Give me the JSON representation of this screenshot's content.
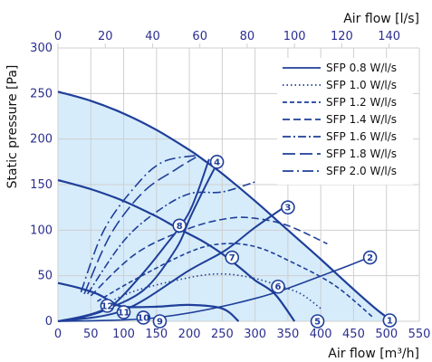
{
  "chart_data": {
    "type": "line",
    "x_axis_bottom": {
      "label": "Air flow [m³/h]",
      "range": [
        0,
        550
      ],
      "ticks": [
        "0",
        "50",
        "100",
        "150",
        "200",
        "250",
        "300",
        "350",
        "400",
        "450",
        "500",
        "550"
      ]
    },
    "x_axis_top": {
      "label": "Air flow [l/s]",
      "range": [
        0,
        152.78
      ],
      "ticks": [
        "0",
        "20",
        "40",
        "60",
        "80",
        "100",
        "120",
        "140"
      ]
    },
    "y_axis": {
      "label": "Static pressure [Pa]",
      "range": [
        0,
        300
      ],
      "ticks": [
        "0",
        "50",
        "100",
        "150",
        "200",
        "250",
        "300"
      ]
    },
    "grid": true,
    "legend_position": "top-right",
    "colors": {
      "line": "#1f3f99",
      "fill": "#d6ecfb",
      "axis_text": "#2b2f8f",
      "grid": "#cfcfcf"
    },
    "fan_curves": [
      {
        "points": [
          [
            0,
            252
          ],
          [
            50,
            242
          ],
          [
            100,
            228
          ],
          [
            150,
            210
          ],
          [
            200,
            188
          ],
          [
            220,
            178
          ],
          [
            250,
            162
          ],
          [
            300,
            132
          ],
          [
            350,
            100
          ],
          [
            400,
            68
          ],
          [
            450,
            35
          ],
          [
            490,
            10
          ],
          [
            510,
            0
          ]
        ]
      },
      {
        "points": [
          [
            0,
            155
          ],
          [
            50,
            145
          ],
          [
            100,
            132
          ],
          [
            150,
            115
          ],
          [
            180,
            103
          ],
          [
            220,
            88
          ],
          [
            250,
            74
          ],
          [
            280,
            57
          ],
          [
            300,
            45
          ],
          [
            330,
            30
          ],
          [
            360,
            0
          ]
        ]
      },
      {
        "points": [
          [
            0,
            42
          ],
          [
            30,
            37
          ],
          [
            60,
            30
          ],
          [
            80,
            22
          ],
          [
            100,
            16
          ],
          [
            150,
            16
          ],
          [
            200,
            18
          ],
          [
            250,
            14
          ],
          [
            275,
            0
          ]
        ]
      }
    ],
    "system_curves": [
      {
        "name": "SFP 0.8 W/l/s",
        "style": "solid",
        "points": [
          [
            0,
            0
          ],
          [
            150,
            4
          ],
          [
            300,
            25
          ],
          [
            420,
            55
          ],
          [
            480,
            72
          ]
        ]
      },
      {
        "name": "SFP 1.0 W/l/s",
        "style": "dotted",
        "points": [
          [
            75,
            20
          ],
          [
            120,
            34
          ],
          [
            200,
            48
          ],
          [
            250,
            52
          ],
          [
            300,
            47
          ],
          [
            340,
            38
          ],
          [
            370,
            30
          ],
          [
            400,
            14
          ]
        ]
      },
      {
        "name": "SFP 1.2 W/l/s",
        "style": "short-dash",
        "points": [
          [
            60,
            22
          ],
          [
            120,
            47
          ],
          [
            200,
            76
          ],
          [
            250,
            85
          ],
          [
            300,
            82
          ],
          [
            350,
            67
          ],
          [
            420,
            40
          ],
          [
            480,
            4
          ]
        ]
      },
      {
        "name": "SFP 1.4 W/l/s",
        "style": "dash",
        "points": [
          [
            50,
            28
          ],
          [
            120,
            75
          ],
          [
            200,
            102
          ],
          [
            260,
            113
          ],
          [
            300,
            113
          ],
          [
            350,
            105
          ],
          [
            410,
            85
          ]
        ]
      },
      {
        "name": "SFP 1.6 W/l/s",
        "style": "dash-dot",
        "points": [
          [
            45,
            30
          ],
          [
            100,
            88
          ],
          [
            150,
            120
          ],
          [
            200,
            140
          ],
          [
            250,
            142
          ],
          [
            300,
            153
          ]
        ]
      },
      {
        "name": "SFP 1.8 W/l/s",
        "style": "long-dash",
        "points": [
          [
            40,
            30
          ],
          [
            80,
            95
          ],
          [
            130,
            142
          ],
          [
            180,
            167
          ],
          [
            210,
            180
          ]
        ]
      },
      {
        "name": "SFP 2.0 W/l/s",
        "style": "long-dash-dot",
        "points": [
          [
            35,
            32
          ],
          [
            70,
            100
          ],
          [
            120,
            150
          ],
          [
            160,
            175
          ],
          [
            210,
            182
          ]
        ]
      }
    ],
    "resistance_curves": [
      {
        "points": [
          [
            0,
            0
          ],
          [
            100,
            12
          ],
          [
            200,
            56
          ],
          [
            255,
            78
          ],
          [
            300,
            103
          ],
          [
            350,
            128
          ]
        ]
      },
      {
        "points": [
          [
            0,
            0
          ],
          [
            60,
            10
          ],
          [
            130,
            34
          ],
          [
            180,
            80
          ],
          [
            200,
            112
          ],
          [
            220,
            142
          ],
          [
            240,
            170
          ],
          [
            245,
            175
          ]
        ]
      },
      {
        "points": [
          [
            0,
            0
          ],
          [
            40,
            5
          ],
          [
            80,
            16
          ],
          [
            120,
            45
          ],
          [
            160,
            80
          ],
          [
            200,
            120
          ],
          [
            230,
            178
          ]
        ]
      }
    ],
    "markers": [
      {
        "label": "1",
        "x": 505,
        "y": 1
      },
      {
        "label": "2",
        "x": 475,
        "y": 70
      },
      {
        "label": "3",
        "x": 350,
        "y": 125
      },
      {
        "label": "4",
        "x": 242,
        "y": 175
      },
      {
        "label": "5",
        "x": 395,
        "y": 0
      },
      {
        "label": "6",
        "x": 335,
        "y": 38
      },
      {
        "label": "7",
        "x": 265,
        "y": 70
      },
      {
        "label": "8",
        "x": 185,
        "y": 105
      },
      {
        "label": "9",
        "x": 155,
        "y": 0
      },
      {
        "label": "10",
        "x": 130,
        "y": 4
      },
      {
        "label": "11",
        "x": 100,
        "y": 10
      },
      {
        "label": "12",
        "x": 75,
        "y": 17
      }
    ]
  }
}
